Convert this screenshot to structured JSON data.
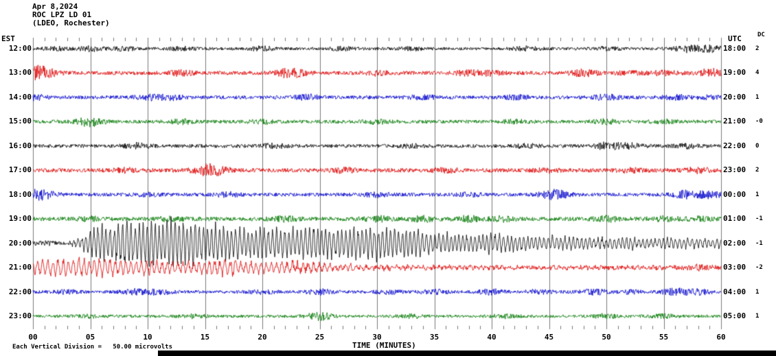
{
  "header": {
    "date": "Apr 8,2024",
    "station": "ROC LPZ LD 01",
    "location": "(LDEO, Rochester)"
  },
  "axes": {
    "left_label": "EST",
    "right_label": "UTC",
    "dc_label": "DC",
    "x_label": "TIME (MINUTES)",
    "x_ticks": [
      "00",
      "05",
      "10",
      "15",
      "20",
      "25",
      "30",
      "35",
      "40",
      "45",
      "50",
      "55",
      "60"
    ]
  },
  "footer": {
    "scale_note": "Each Vertical Division =   50.00 microvolts"
  },
  "colors": {
    "black": "#000000",
    "red": "#dd0000",
    "blue": "#0000cc",
    "green": "#007700",
    "grid": "#777777"
  },
  "chart_data": {
    "type": "line",
    "title": "ROC LPZ LD 01 helicorder, Apr 8,2024 (LDEO, Rochester)",
    "xlabel": "TIME (MINUTES)",
    "x_range_minutes": [
      0,
      60
    ],
    "minutes_per_row": 60,
    "vertical_division_microvolts": 50.0,
    "rows": [
      {
        "est": "12:00",
        "utc": "18:00",
        "dc": "2",
        "color": "black",
        "base": 2.2,
        "bursts": [
          [
            2,
            2
          ],
          [
            5,
            3
          ],
          [
            8,
            2
          ],
          [
            13,
            2
          ],
          [
            20,
            2.5
          ],
          [
            27,
            2
          ],
          [
            33,
            2
          ],
          [
            43,
            2.5
          ],
          [
            50,
            2
          ],
          [
            57,
            4
          ],
          [
            59,
            4
          ]
        ],
        "event": [],
        "freq": 2.5
      },
      {
        "est": "13:00",
        "utc": "19:00",
        "dc": "4",
        "color": "red",
        "base": 2.8,
        "bursts": [
          [
            0,
            6
          ],
          [
            1,
            5
          ],
          [
            13,
            3
          ],
          [
            22,
            4
          ],
          [
            23,
            3
          ],
          [
            30,
            2.5
          ],
          [
            38,
            3
          ],
          [
            40,
            2.5
          ],
          [
            48,
            4
          ],
          [
            52,
            2
          ],
          [
            55,
            2.5
          ],
          [
            59,
            5
          ]
        ],
        "event": [],
        "freq": 2.5
      },
      {
        "est": "14:00",
        "utc": "20:00",
        "dc": "1",
        "color": "blue",
        "base": 2.6,
        "bursts": [
          [
            0,
            3
          ],
          [
            10,
            3
          ],
          [
            12,
            3
          ],
          [
            24,
            3
          ],
          [
            34,
            2.5
          ],
          [
            42,
            2.5
          ],
          [
            50,
            3
          ],
          [
            56,
            3
          ],
          [
            59,
            2
          ]
        ],
        "event": [],
        "freq": 2.5
      },
      {
        "est": "15:00",
        "utc": "21:00",
        "dc": "-0",
        "color": "green",
        "base": 2.6,
        "bursts": [
          [
            5,
            6
          ],
          [
            13,
            2.5
          ],
          [
            20,
            2
          ],
          [
            30,
            2
          ],
          [
            42,
            2
          ],
          [
            50,
            2.5
          ],
          [
            55,
            2
          ]
        ],
        "event": [],
        "freq": 2.5
      },
      {
        "est": "16:00",
        "utc": "22:00",
        "dc": "0",
        "color": "black",
        "base": 2.6,
        "bursts": [
          [
            9,
            3.5
          ],
          [
            21,
            2.5
          ],
          [
            33,
            2
          ],
          [
            43,
            2
          ],
          [
            50,
            4
          ],
          [
            52,
            3
          ],
          [
            57,
            2.5
          ]
        ],
        "event": [],
        "freq": 2.5
      },
      {
        "est": "17:00",
        "utc": "23:00",
        "dc": "2",
        "color": "red",
        "base": 3.0,
        "bursts": [
          [
            8,
            2
          ],
          [
            15,
            5
          ],
          [
            16,
            4
          ],
          [
            27,
            2.5
          ],
          [
            36,
            2
          ],
          [
            45,
            2
          ],
          [
            52,
            2
          ],
          [
            58,
            3
          ]
        ],
        "event": [],
        "freq": 2.5
      },
      {
        "est": "18:00",
        "utc": "00:00",
        "dc": "1",
        "color": "blue",
        "base": 2.6,
        "bursts": [
          [
            0,
            4
          ],
          [
            1,
            4
          ],
          [
            10,
            2
          ],
          [
            17,
            2.5
          ],
          [
            30,
            2.5
          ],
          [
            38,
            2
          ],
          [
            45,
            4
          ],
          [
            46,
            3
          ],
          [
            57,
            5
          ],
          [
            59,
            4
          ]
        ],
        "event": [],
        "freq": 2.5
      },
      {
        "est": "19:00",
        "utc": "01:00",
        "dc": "-1",
        "color": "green",
        "base": 3.0,
        "bursts": [
          [
            5,
            2
          ],
          [
            12,
            2
          ],
          [
            22,
            2.5
          ],
          [
            30,
            3
          ],
          [
            34,
            3
          ],
          [
            38,
            3
          ],
          [
            41,
            2.5
          ],
          [
            50,
            3
          ],
          [
            55,
            3
          ],
          [
            58,
            2
          ]
        ],
        "event": [],
        "freq": 2.5
      },
      {
        "est": "20:00",
        "utc": "02:00",
        "dc": "-1",
        "color": "black",
        "base": 2.6,
        "bursts": [
          [
            1,
            1.5
          ]
        ],
        "event": [
          [
            3,
            0
          ],
          [
            4,
            8
          ],
          [
            5,
            18
          ],
          [
            6,
            30
          ],
          [
            7,
            24
          ],
          [
            8,
            36
          ],
          [
            9,
            30
          ],
          [
            10,
            38
          ],
          [
            11,
            30
          ],
          [
            12,
            40
          ],
          [
            13,
            34
          ],
          [
            14,
            38
          ],
          [
            15,
            26
          ],
          [
            16,
            30
          ],
          [
            17,
            24
          ],
          [
            18,
            28
          ],
          [
            19,
            22
          ],
          [
            20,
            26
          ],
          [
            22,
            22
          ],
          [
            24,
            26
          ],
          [
            26,
            22
          ],
          [
            28,
            24
          ],
          [
            30,
            26
          ],
          [
            32,
            22
          ],
          [
            33,
            24
          ],
          [
            34,
            18
          ],
          [
            36,
            16
          ],
          [
            38,
            13
          ],
          [
            40,
            15
          ],
          [
            42,
            12
          ],
          [
            44,
            10
          ],
          [
            46,
            11
          ],
          [
            48,
            9
          ],
          [
            50,
            8
          ],
          [
            52,
            9
          ],
          [
            54,
            7
          ],
          [
            56,
            8
          ],
          [
            58,
            7
          ],
          [
            60,
            7
          ]
        ],
        "freq": 2.8
      },
      {
        "est": "21:00",
        "utc": "03:00",
        "dc": "-2",
        "color": "red",
        "base": 3.0,
        "bursts": [
          [
            17,
            3
          ],
          [
            23,
            3
          ],
          [
            58,
            2
          ]
        ],
        "event": [
          [
            0,
            10
          ],
          [
            2,
            12
          ],
          [
            4,
            14
          ],
          [
            5,
            12
          ],
          [
            6,
            13
          ],
          [
            8,
            11
          ],
          [
            10,
            10
          ],
          [
            12,
            9
          ],
          [
            14,
            8
          ],
          [
            16,
            10
          ],
          [
            18,
            9
          ],
          [
            20,
            8
          ],
          [
            22,
            9
          ],
          [
            24,
            7
          ],
          [
            25,
            6
          ],
          [
            26,
            5
          ],
          [
            28,
            4
          ],
          [
            30,
            3
          ],
          [
            34,
            2
          ],
          [
            40,
            1.5
          ],
          [
            60,
            1
          ]
        ],
        "freq": 2.2
      },
      {
        "est": "22:00",
        "utc": "04:00",
        "dc": "1",
        "color": "blue",
        "base": 2.4,
        "bursts": [
          [
            3,
            2
          ],
          [
            9,
            3
          ],
          [
            11,
            3
          ],
          [
            20,
            2
          ],
          [
            25,
            3
          ],
          [
            31,
            2
          ],
          [
            35,
            2.5
          ],
          [
            40,
            3
          ],
          [
            44,
            2
          ],
          [
            49,
            3
          ],
          [
            52,
            2
          ],
          [
            56,
            4
          ],
          [
            58,
            3
          ]
        ],
        "event": [],
        "freq": 2.5
      },
      {
        "est": "23:00",
        "utc": "05:00",
        "dc": "1",
        "color": "green",
        "base": 2.2,
        "bursts": [
          [
            5,
            2
          ],
          [
            14,
            2
          ],
          [
            25,
            5
          ],
          [
            33,
            2
          ],
          [
            41,
            2
          ],
          [
            50,
            2.5
          ],
          [
            55,
            2
          ]
        ],
        "event": [],
        "freq": 2.5
      }
    ]
  }
}
